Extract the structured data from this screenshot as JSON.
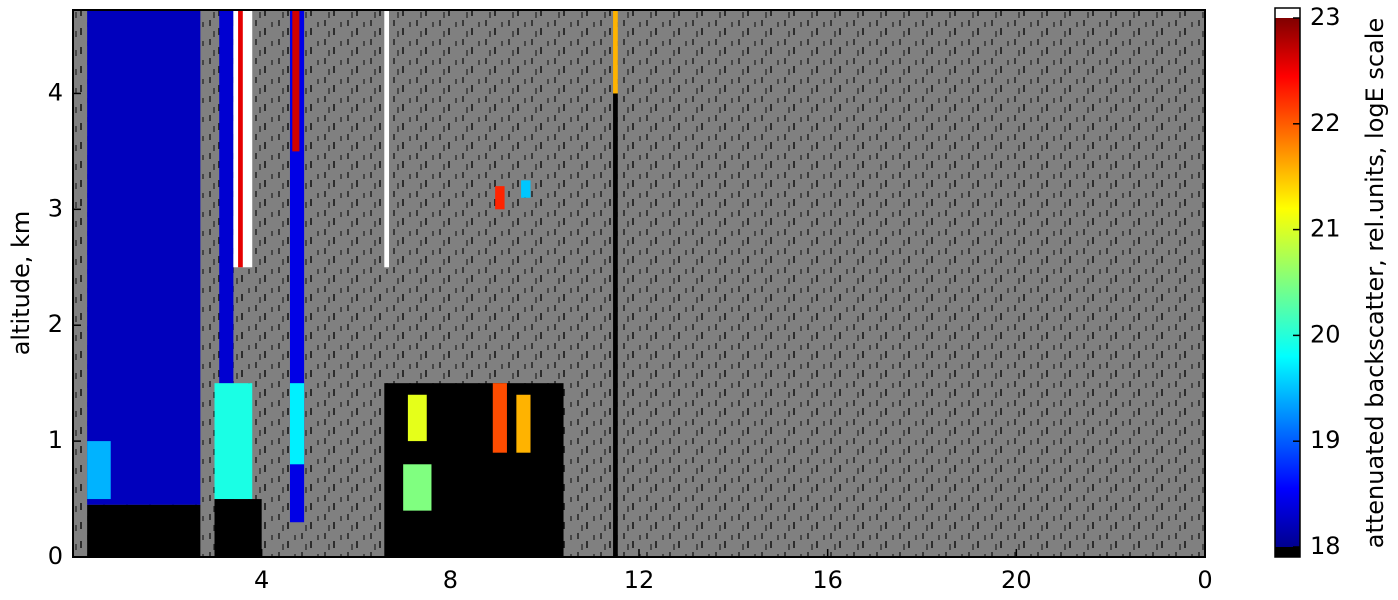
{
  "chart_data": {
    "type": "heatmap",
    "ylabel": "altitude, km",
    "xlim": [
      0,
      24
    ],
    "ylim": [
      0,
      4.72
    ],
    "xticks": [
      4,
      8,
      12,
      16,
      20,
      {
        "value": 24,
        "label": "0"
      }
    ],
    "yticks": [
      0,
      1,
      2,
      3,
      4
    ],
    "colorbar": {
      "label": "attenuated backscatter, rel.units, logE scale",
      "clim": [
        18,
        23
      ],
      "ticks": [
        18,
        19,
        20,
        21,
        22,
        23
      ]
    },
    "cells": [
      {
        "x": [
          0.3,
          2.7
        ],
        "y": [
          0.45,
          4.72
        ],
        "value": 18.3
      },
      {
        "x": [
          0.3,
          2.7
        ],
        "y": [
          0,
          0.45
        ],
        "value": 17.5
      },
      {
        "x": [
          0.3,
          0.8
        ],
        "y": [
          0.5,
          1.0
        ],
        "value": 19.5
      },
      {
        "x": [
          3.1,
          3.4
        ],
        "y": [
          0.45,
          4.72
        ],
        "value": 18.4
      },
      {
        "x": [
          3.4,
          3.8
        ],
        "y": [
          2.5,
          4.72
        ],
        "value": 23.5
      },
      {
        "x": [
          3.5,
          3.6
        ],
        "y": [
          2.5,
          4.72
        ],
        "value": 22.5
      },
      {
        "x": [
          3.0,
          3.8
        ],
        "y": [
          0.5,
          1.5
        ],
        "value": 20.0
      },
      {
        "x": [
          3.0,
          4.0
        ],
        "y": [
          0,
          0.5
        ],
        "value": 17.5
      },
      {
        "x": [
          4.6,
          4.9
        ],
        "y": [
          0.3,
          4.72
        ],
        "value": 18.5
      },
      {
        "x": [
          4.65,
          4.8
        ],
        "y": [
          3.5,
          4.72
        ],
        "value": 22.6
      },
      {
        "x": [
          4.6,
          4.9
        ],
        "y": [
          0.8,
          1.5
        ],
        "value": 19.8
      },
      {
        "x": [
          6.6,
          10.4
        ],
        "y": [
          0,
          1.5
        ],
        "value": 17.5
      },
      {
        "x": [
          7.0,
          7.6
        ],
        "y": [
          0.4,
          0.8
        ],
        "value": 20.5
      },
      {
        "x": [
          7.1,
          7.5
        ],
        "y": [
          1.0,
          1.4
        ],
        "value": 21.0
      },
      {
        "x": [
          8.9,
          9.2
        ],
        "y": [
          0.9,
          1.5
        ],
        "value": 22.0
      },
      {
        "x": [
          9.4,
          9.7
        ],
        "y": [
          0.9,
          1.4
        ],
        "value": 21.5
      },
      {
        "x": [
          8.95,
          9.15
        ],
        "y": [
          3.0,
          3.2
        ],
        "value": 22.2
      },
      {
        "x": [
          9.5,
          9.7
        ],
        "y": [
          3.1,
          3.25
        ],
        "value": 19.6
      },
      {
        "x": [
          6.6,
          6.7
        ],
        "y": [
          2.5,
          4.72
        ],
        "value": 23.5
      },
      {
        "x": [
          11.45,
          11.55
        ],
        "y": [
          0,
          4.0
        ],
        "value": 17.5
      },
      {
        "x": [
          11.45,
          11.55
        ],
        "y": [
          4.0,
          4.72
        ],
        "value": 21.5
      }
    ]
  }
}
